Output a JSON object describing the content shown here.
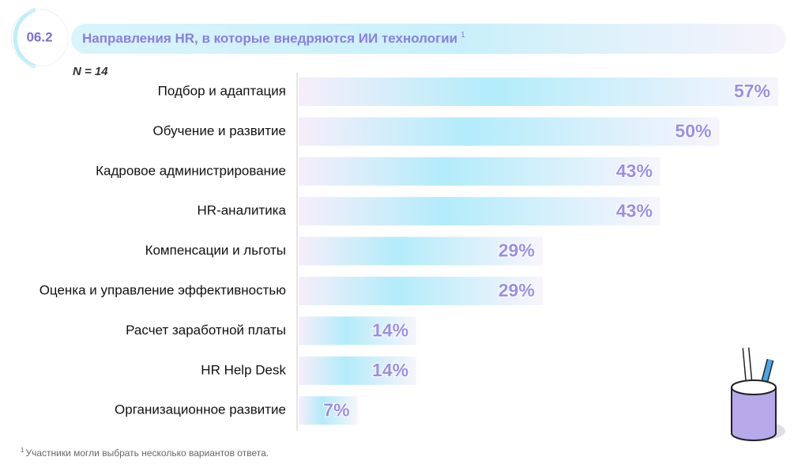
{
  "section": "06.2",
  "chart_data": {
    "type": "bar",
    "orientation": "horizontal",
    "title": "Направления HR, в которые внедряются ИИ технологии",
    "title_note": "1",
    "subtitle": "N = 14",
    "categories": [
      "Подбор и адаптация",
      "Обучение и развитие",
      "Кадровое администрирование",
      "HR-аналитика",
      "Компенсации и льготы",
      "Оценка и управление эффективностью",
      "Расчет заработной платы",
      "HR Help Desk",
      "Организационное развитие"
    ],
    "values": [
      57,
      50,
      43,
      43,
      29,
      29,
      14,
      14,
      7
    ],
    "value_labels": [
      "57%",
      "50%",
      "43%",
      "43%",
      "29%",
      "29%",
      "14%",
      "14%",
      "7%"
    ],
    "color": "#b3ecfa",
    "label_color": "#9a8ee6"
  },
  "footnote": {
    "marker": "1",
    "text": "Участники могли выбрать несколько вариантов ответа."
  }
}
